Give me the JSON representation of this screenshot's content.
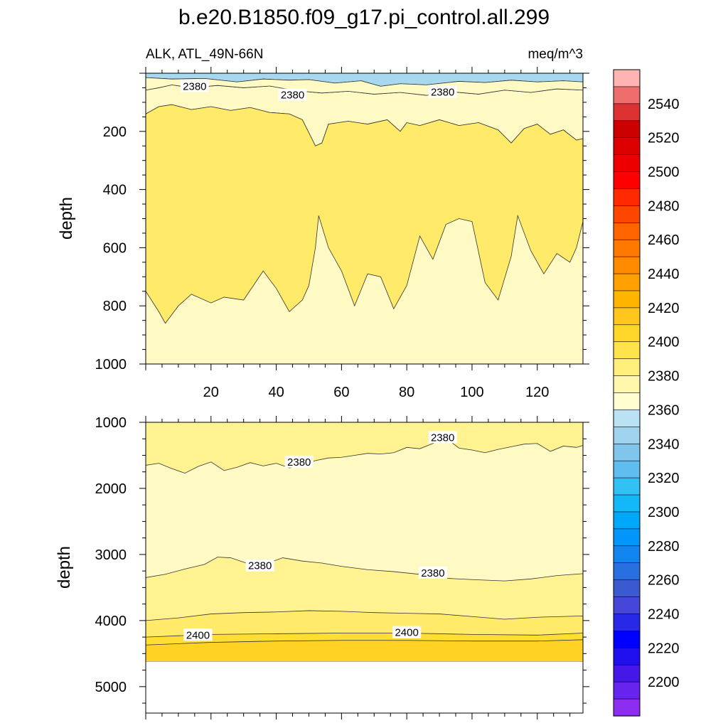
{
  "chart_data": [
    {
      "type": "contour",
      "title": "b.e20.B1850.f09_g17.pi_control.all.299",
      "subtitle_left": "ALK, ATL_49N-66N",
      "subtitle_right": "meq/m^3",
      "ylabel": "depth",
      "xlim": [
        0,
        134
      ],
      "ylim": [
        0,
        1000
      ],
      "x_ticks": [
        20,
        40,
        60,
        80,
        100,
        120
      ],
      "y_ticks": [
        200,
        400,
        600,
        800,
        1000
      ],
      "contour_labels": [
        {
          "text": "2380",
          "x": 15,
          "y": 45
        },
        {
          "text": "2380",
          "x": 45,
          "y": 75
        },
        {
          "text": "2380",
          "x": 91,
          "y": 65
        }
      ],
      "layers": [
        {
          "value_range": "2360-2370",
          "color": "#a8d8f0",
          "boundary": [
            [
              0,
              15
            ],
            [
              8,
              20
            ],
            [
              18,
              18
            ],
            [
              28,
              30
            ],
            [
              36,
              20
            ],
            [
              44,
              24
            ],
            [
              50,
              22
            ],
            [
              58,
              34
            ],
            [
              66,
              26
            ],
            [
              72,
              45
            ],
            [
              78,
              36
            ],
            [
              86,
              40
            ],
            [
              96,
              28
            ],
            [
              104,
              32
            ],
            [
              112,
              24
            ],
            [
              120,
              30
            ],
            [
              128,
              26
            ],
            [
              134,
              30
            ]
          ]
        },
        {
          "value_range": "2370-2380",
          "color": "#b8e0f4",
          "boundary": [
            [
              0,
              8
            ],
            [
              10,
              10
            ],
            [
              20,
              8
            ],
            [
              30,
              12
            ],
            [
              40,
              9
            ],
            [
              50,
              10
            ],
            [
              60,
              9
            ],
            [
              70,
              12
            ],
            [
              80,
              9
            ],
            [
              90,
              10
            ],
            [
              100,
              9
            ],
            [
              110,
              12
            ],
            [
              120,
              9
            ],
            [
              134,
              10
            ]
          ]
        },
        {
          "value_range": "2380-2390",
          "color": "#fffac4",
          "boundary": [
            [
              0,
              58
            ],
            [
              4,
              50
            ],
            [
              8,
              40
            ],
            [
              14,
              50
            ],
            [
              22,
              42
            ],
            [
              30,
              50
            ],
            [
              38,
              44
            ],
            [
              46,
              60
            ],
            [
              54,
              68
            ],
            [
              62,
              62
            ],
            [
              70,
              72
            ],
            [
              78,
              66
            ],
            [
              86,
              76
            ],
            [
              94,
              64
            ],
            [
              102,
              72
            ],
            [
              110,
              58
            ],
            [
              118,
              66
            ],
            [
              126,
              54
            ],
            [
              134,
              58
            ]
          ]
        },
        {
          "value_range": "2390-2400",
          "color": "#fff291",
          "boundary": [
            [
              0,
              140
            ],
            [
              4,
              115
            ],
            [
              8,
              108
            ],
            [
              14,
              125
            ],
            [
              20,
              115
            ],
            [
              26,
              128
            ],
            [
              32,
              118
            ],
            [
              38,
              135
            ],
            [
              44,
              140
            ],
            [
              48,
              160
            ],
            [
              52,
              250
            ],
            [
              54,
              240
            ],
            [
              56,
              175
            ],
            [
              62,
              165
            ],
            [
              68,
              175
            ],
            [
              74,
              160
            ],
            [
              78,
              200
            ],
            [
              80,
              170
            ],
            [
              84,
              180
            ],
            [
              90,
              160
            ],
            [
              96,
              180
            ],
            [
              102,
              170
            ],
            [
              108,
              195
            ],
            [
              112,
              240
            ],
            [
              116,
              190
            ],
            [
              120,
              175
            ],
            [
              124,
              210
            ],
            [
              128,
              195
            ],
            [
              132,
              230
            ],
            [
              134,
              225
            ]
          ]
        },
        {
          "value_range": "2400-2410",
          "color": "#ffea6a",
          "boundary": [
            [
              0,
              750
            ],
            [
              4,
              820
            ],
            [
              6,
              860
            ],
            [
              10,
              800
            ],
            [
              14,
              760
            ],
            [
              20,
              790
            ],
            [
              24,
              770
            ],
            [
              30,
              780
            ],
            [
              36,
              680
            ],
            [
              40,
              740
            ],
            [
              44,
              820
            ],
            [
              48,
              780
            ],
            [
              50,
              730
            ],
            [
              52,
              600
            ],
            [
              53,
              490
            ],
            [
              56,
              600
            ],
            [
              60,
              680
            ],
            [
              64,
              800
            ],
            [
              68,
              690
            ],
            [
              72,
              700
            ],
            [
              76,
              810
            ],
            [
              80,
              730
            ],
            [
              84,
              560
            ],
            [
              88,
              640
            ],
            [
              92,
              520
            ],
            [
              96,
              500
            ],
            [
              100,
              510
            ],
            [
              104,
              720
            ],
            [
              108,
              780
            ],
            [
              112,
              630
            ],
            [
              114,
              490
            ],
            [
              118,
              610
            ],
            [
              122,
              690
            ],
            [
              126,
              620
            ],
            [
              130,
              650
            ],
            [
              132,
              600
            ],
            [
              134,
              510
            ]
          ]
        }
      ],
      "fill_color": "#fff291",
      "deep_color": "#fffac4"
    },
    {
      "type": "contour",
      "ylabel": "depth",
      "xlim": [
        0,
        134
      ],
      "ylim": [
        1000,
        5400
      ],
      "x_ticks": [
        20,
        40,
        60,
        80,
        100,
        120
      ],
      "y_ticks": [
        1000,
        2000,
        3000,
        4000,
        5000
      ],
      "contour_labels": [
        {
          "text": "2380",
          "x": 47,
          "y": 1600
        },
        {
          "text": "2380",
          "x": 91,
          "y": 1230
        },
        {
          "text": "2380",
          "x": 35,
          "y": 3170
        },
        {
          "text": "2380",
          "x": 88,
          "y": 3280
        },
        {
          "text": "2400",
          "x": 16,
          "y": 4220
        },
        {
          "text": "2400",
          "x": 80,
          "y": 4180
        }
      ],
      "layers": [
        {
          "value_range": "2390-2400",
          "color": "#fff291",
          "boundary": [
            [
              0,
              1000
            ],
            [
              134,
              1000
            ]
          ]
        },
        {
          "value_range": "2380-2390",
          "color": "#fffac4",
          "boundary": [
            [
              0,
              1650
            ],
            [
              4,
              1620
            ],
            [
              8,
              1700
            ],
            [
              12,
              1770
            ],
            [
              16,
              1670
            ],
            [
              20,
              1600
            ],
            [
              24,
              1730
            ],
            [
              28,
              1680
            ],
            [
              32,
              1610
            ],
            [
              36,
              1660
            ],
            [
              40,
              1620
            ],
            [
              44,
              1690
            ],
            [
              48,
              1650
            ],
            [
              52,
              1580
            ],
            [
              56,
              1540
            ],
            [
              60,
              1530
            ],
            [
              64,
              1500
            ],
            [
              68,
              1470
            ],
            [
              72,
              1480
            ],
            [
              76,
              1460
            ],
            [
              80,
              1380
            ],
            [
              84,
              1400
            ],
            [
              88,
              1320
            ],
            [
              92,
              1240
            ],
            [
              96,
              1390
            ],
            [
              100,
              1420
            ],
            [
              104,
              1460
            ],
            [
              108,
              1410
            ],
            [
              112,
              1370
            ],
            [
              116,
              1330
            ],
            [
              120,
              1320
            ],
            [
              124,
              1440
            ],
            [
              128,
              1360
            ],
            [
              132,
              1380
            ],
            [
              134,
              1350
            ]
          ]
        },
        {
          "value_range": "2390-2400",
          "color": "#fff291",
          "boundary": [
            [
              0,
              3350
            ],
            [
              6,
              3300
            ],
            [
              12,
              3220
            ],
            [
              18,
              3150
            ],
            [
              22,
              3040
            ],
            [
              26,
              3050
            ],
            [
              32,
              3150
            ],
            [
              38,
              3120
            ],
            [
              42,
              3050
            ],
            [
              48,
              3100
            ],
            [
              54,
              3130
            ],
            [
              60,
              3180
            ],
            [
              68,
              3230
            ],
            [
              76,
              3260
            ],
            [
              84,
              3300
            ],
            [
              92,
              3360
            ],
            [
              100,
              3380
            ],
            [
              110,
              3400
            ],
            [
              118,
              3370
            ],
            [
              126,
              3320
            ],
            [
              134,
              3290
            ]
          ]
        },
        {
          "value_range": "2400-2410",
          "color": "#ffea6a",
          "boundary": [
            [
              0,
              4000
            ],
            [
              10,
              3960
            ],
            [
              20,
              3900
            ],
            [
              30,
              3880
            ],
            [
              40,
              3870
            ],
            [
              50,
              3850
            ],
            [
              60,
              3860
            ],
            [
              70,
              3880
            ],
            [
              80,
              3890
            ],
            [
              90,
              3900
            ],
            [
              100,
              3940
            ],
            [
              110,
              3980
            ],
            [
              120,
              3950
            ],
            [
              134,
              3930
            ]
          ]
        },
        {
          "value_range": "2410-2420",
          "color": "#ffde32",
          "boundary": [
            [
              0,
              4250
            ],
            [
              20,
              4210
            ],
            [
              40,
              4200
            ],
            [
              60,
              4190
            ],
            [
              80,
              4190
            ],
            [
              100,
              4210
            ],
            [
              120,
              4220
            ],
            [
              134,
              4190
            ]
          ]
        },
        {
          "value_range": "2420-2430",
          "color": "#ffd223",
          "boundary": [
            [
              0,
              4370
            ],
            [
              20,
              4330
            ],
            [
              40,
              4310
            ],
            [
              60,
              4300
            ],
            [
              80,
              4300
            ],
            [
              100,
              4310
            ],
            [
              120,
              4310
            ],
            [
              134,
              4290
            ]
          ]
        }
      ],
      "bottom_depth": 4620
    }
  ],
  "colorbar": {
    "labels": [
      "2540",
      "2520",
      "2500",
      "2480",
      "2460",
      "2440",
      "2420",
      "2400",
      "2380",
      "2360",
      "2340",
      "2320",
      "2300",
      "2280",
      "2260",
      "2240",
      "2220",
      "2200"
    ],
    "colors": [
      "#ffb4b4",
      "#ee6e6e",
      "#dd3131",
      "#cc0000",
      "#dd0000",
      "#ee0000",
      "#ff0000",
      "#ff2800",
      "#ff4600",
      "#ff6400",
      "#ff7800",
      "#ff8c00",
      "#ffa000",
      "#ffb400",
      "#ffc61e",
      "#ffd629",
      "#ffe34a",
      "#ffee7c",
      "#fff7ab",
      "#fffed0",
      "#bbe2f4",
      "#a0d3ee",
      "#80c5ec",
      "#60bdf0",
      "#32c1f5",
      "#12b8f8",
      "#00a8fa",
      "#0096fa",
      "#1284f0",
      "#2870e0",
      "#3c5ad0",
      "#4646d8",
      "#2828e8",
      "#0000ff",
      "#2010f0",
      "#4418e8",
      "#6624ee",
      "#8c2cf0"
    ]
  }
}
